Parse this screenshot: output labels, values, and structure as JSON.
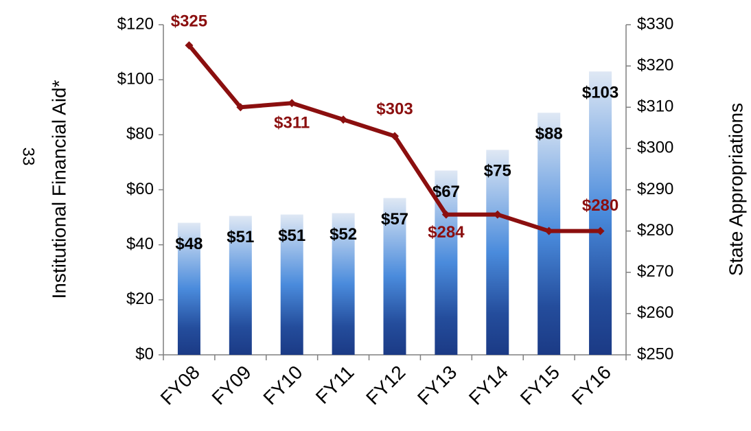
{
  "page_number": "33",
  "chart_data": {
    "type": "bar-line",
    "y_label": "Institutional Financial Aid*",
    "y2_label": "State Appropriations",
    "categories": [
      "FY08",
      "FY09",
      "FY10",
      "FY11",
      "FY12",
      "FY13",
      "FY14",
      "FY15",
      "FY16"
    ],
    "series": [
      {
        "type": "bar",
        "color": "#1f3f8c",
        "values": [
          48,
          50.5,
          51,
          51.5,
          57,
          67,
          74.5,
          88,
          103
        ],
        "value_labels": [
          "$48",
          "$51",
          "$51",
          "$52",
          "$57",
          "$67",
          "$75",
          "$88",
          "$103"
        ]
      },
      {
        "type": "line",
        "axis": "y2",
        "color": "#8b0f0f",
        "values": [
          325,
          310,
          311,
          307,
          303,
          284,
          284,
          280,
          280
        ],
        "value_labels": [
          "$325",
          null,
          "$311",
          null,
          "$303",
          "$284",
          null,
          null,
          "$280"
        ]
      }
    ],
    "ylim": [
      0,
      120
    ],
    "yticks": [
      {
        "value": 0,
        "label": "$0"
      },
      {
        "value": 20,
        "label": "$20"
      },
      {
        "value": 40,
        "label": "$40"
      },
      {
        "value": 60,
        "label": "$60"
      },
      {
        "value": 80,
        "label": "$80"
      },
      {
        "value": 100,
        "label": "$100"
      },
      {
        "value": 120,
        "label": "$120"
      }
    ],
    "y2lim": [
      250,
      330
    ],
    "y2ticks": [
      {
        "value": 250,
        "label": "$250"
      },
      {
        "value": 260,
        "label": "$260"
      },
      {
        "value": 270,
        "label": "$270"
      },
      {
        "value": 280,
        "label": "$280"
      },
      {
        "value": 290,
        "label": "$290"
      },
      {
        "value": 300,
        "label": "$300"
      },
      {
        "value": 310,
        "label": "$310"
      },
      {
        "value": 320,
        "label": "$320"
      },
      {
        "value": 330,
        "label": "$330"
      }
    ]
  }
}
